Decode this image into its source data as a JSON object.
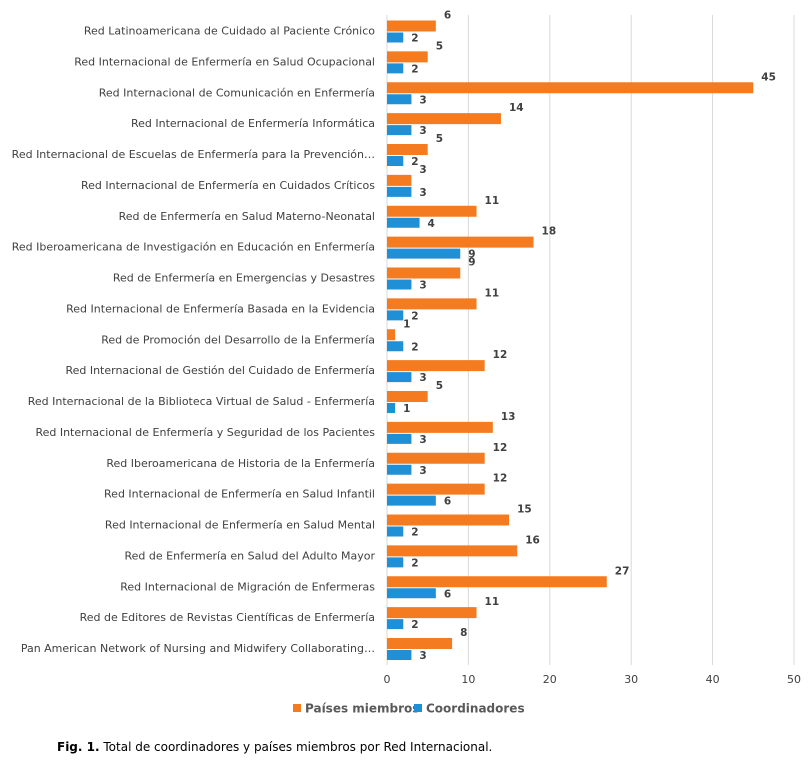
{
  "chart_data": {
    "type": "hbar",
    "categories": [
      "Red Latinoamericana de Cuidado al Paciente Crónico",
      "Red Internacional de Enfermería en Salud Ocupacional",
      "Red Internacional de Comunicación en Enfermería",
      "Red Internacional de Enfermería Informática",
      "Red Internacional de Escuelas de Enfermería para la Prevención…",
      "Red Internacional de Enfermería en Cuidados Críticos",
      "Red de Enfermería en Salud Materno-Neonatal",
      "Red Iberoamericana de Investigación en Educación en Enfermería",
      "Red de Enfermería en Emergencias y Desastres",
      "Red Internacional de Enfermería Basada en la Evidencia",
      "Red de Promoción del Desarrollo de la Enfermería",
      "Red Internacional de Gestión del Cuidado de Enfermería",
      "Red Internacional de la Biblioteca Virtual de Salud - Enfermería",
      "Red Internacional de Enfermería y Seguridad de los Pacientes",
      "Red Iberoamericana de Historia de la Enfermería",
      "Red Internacional de Enfermería en Salud Infantil",
      "Red Internacional de Enfermería en Salud Mental",
      "Red de Enfermería en Salud del Adulto Mayor",
      "Red Internacional de Migración de Enfermeras",
      "Red de Editores de Revistas Científicas de Enfermería",
      "Pan American Network of Nursing and Midwifery Collaborating…"
    ],
    "series": [
      {
        "name": "Países miembros",
        "color": "#f47b20",
        "values": [
          6,
          5,
          45,
          14,
          5,
          3,
          11,
          18,
          9,
          11,
          1,
          12,
          5,
          13,
          12,
          12,
          15,
          16,
          27,
          11,
          8
        ]
      },
      {
        "name": "Coordinadores",
        "color": "#1f8fd6",
        "values": [
          2,
          2,
          3,
          3,
          2,
          3,
          4,
          9,
          3,
          2,
          2,
          3,
          1,
          3,
          3,
          6,
          2,
          2,
          6,
          2,
          3
        ]
      }
    ],
    "xlim": [
      0,
      50
    ],
    "xticks": [
      0,
      10,
      20,
      30,
      40,
      50
    ],
    "grid": true,
    "legend": "bottom",
    "caption_label": "Fig. 1.",
    "caption_text": "Total de coordinadores y países miembros por Red Internacional."
  }
}
